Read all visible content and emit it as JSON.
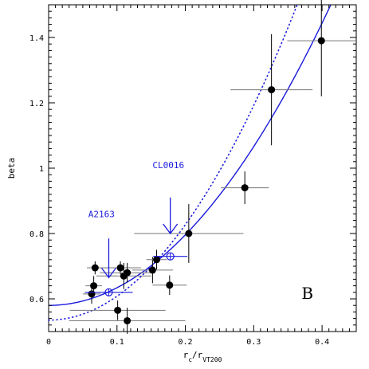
{
  "chart_data": {
    "type": "scatter",
    "xlabel_main": "r",
    "xlabel_sub1": "c",
    "xlabel_mid": "/r",
    "xlabel_sub2": "VT200",
    "ylabel": "beta",
    "xlim": [
      0,
      0.45
    ],
    "ylim": [
      0.5,
      1.5
    ],
    "x_ticks": [
      0,
      0.1,
      0.2,
      0.3,
      0.4
    ],
    "x_tick_labels": [
      "0",
      "0.1",
      "0.2",
      "0.3",
      "0.4"
    ],
    "y_ticks": [
      0.6,
      0.8,
      1.0,
      1.2,
      1.4
    ],
    "y_tick_labels": [
      "0.6",
      "0.8",
      "1",
      "1.2",
      "1.4"
    ],
    "panel_label": "B",
    "accent_color": "#1a1adc",
    "points": [
      {
        "x": 0.063,
        "y": 0.615,
        "xerr": 0.013,
        "yerr": 0.03
      },
      {
        "x": 0.066,
        "y": 0.64,
        "xerr": 0.012,
        "yerr": 0.03
      },
      {
        "x": 0.068,
        "y": 0.695,
        "xerr": 0.012,
        "yerr": 0.02
      },
      {
        "x": 0.101,
        "y": 0.565,
        "xerr": 0.07,
        "yerr": 0.03
      },
      {
        "x": 0.105,
        "y": 0.695,
        "xerr": 0.03,
        "yerr": 0.02
      },
      {
        "x": 0.11,
        "y": 0.67,
        "xerr": 0.04,
        "yerr": 0.04
      },
      {
        "x": 0.115,
        "y": 0.68,
        "xerr": 0.04,
        "yerr": 0.03
      },
      {
        "x": 0.115,
        "y": 0.533,
        "xerr": 0.085,
        "yerr": 0.04
      },
      {
        "x": 0.152,
        "y": 0.688,
        "xerr": 0.03,
        "yerr": 0.04
      },
      {
        "x": 0.158,
        "y": 0.72,
        "xerr": 0.015,
        "yerr": 0.03
      },
      {
        "x": 0.177,
        "y": 0.642,
        "xerr": 0.025,
        "yerr": 0.03
      },
      {
        "x": 0.205,
        "y": 0.8,
        "xerr": 0.08,
        "yerr": 0.09
      },
      {
        "x": 0.287,
        "y": 0.94,
        "xerr": 0.035,
        "yerr": 0.05
      },
      {
        "x": 0.326,
        "y": 1.24,
        "xerr": 0.06,
        "yerr": 0.17
      },
      {
        "x": 0.399,
        "y": 1.39,
        "xerr": 0.05,
        "yerr": 0.17
      }
    ],
    "highlighted_points": [
      {
        "x": 0.088,
        "y": 0.62,
        "xerr": 0.035,
        "yerr": 0.0
      },
      {
        "x": 0.178,
        "y": 0.73,
        "xerr": 0.025,
        "yerr": 0.0
      }
    ],
    "annotations": [
      {
        "label": "A2163",
        "text_x": 0.058,
        "text_y": 0.85,
        "arrow_x": 0.088,
        "arrow_y_top": 0.785,
        "arrow_y_bottom": 0.665
      },
      {
        "label": "CL0016",
        "text_x": 0.152,
        "text_y": 1.0,
        "arrow_x": 0.178,
        "arrow_y_top": 0.91,
        "arrow_y_bottom": 0.8
      }
    ],
    "fit_solid": {
      "a": 0.58,
      "b": 5.4,
      "n": 2
    },
    "fit_dotted": {
      "a": 0.535,
      "b": 7.3,
      "n": 2
    }
  }
}
